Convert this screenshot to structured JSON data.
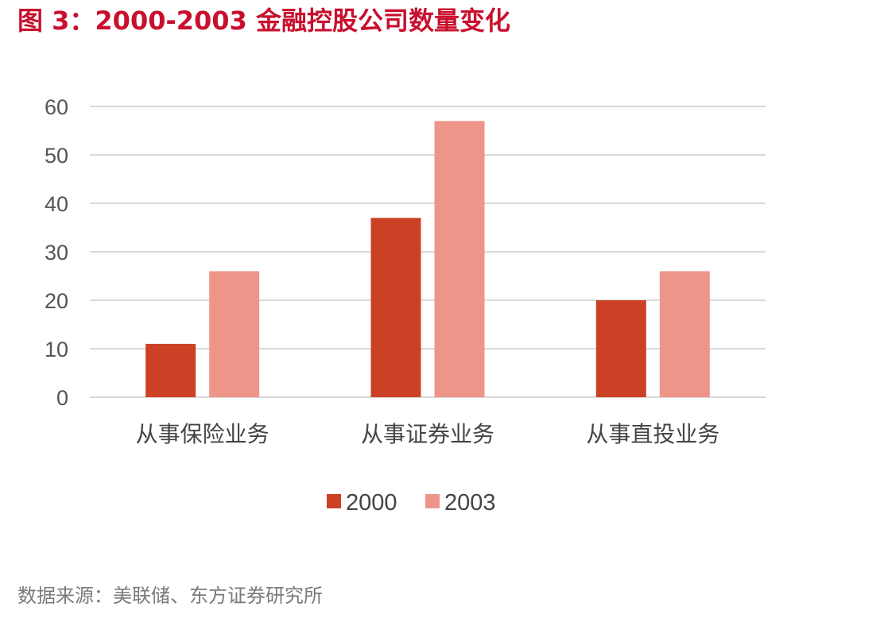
{
  "figure": {
    "title": "图 3：2000-2003 金融控股公司数量变化",
    "source": "数据来源：美联储、东方证券研究所"
  },
  "colors": {
    "title": "#C8102E",
    "series_2000": "#CC4125",
    "series_2003": "#EE958A",
    "grid": "#D9D9D9",
    "source_text": "#7A7A7A"
  },
  "chart_data": {
    "type": "bar",
    "title": "",
    "xlabel": "",
    "ylabel": "",
    "categories": [
      "从事保险业务",
      "从事证券业务",
      "从事直投业务"
    ],
    "series": [
      {
        "name": "2000",
        "values": [
          11,
          37,
          20
        ]
      },
      {
        "name": "2003",
        "values": [
          26,
          57,
          26
        ]
      }
    ],
    "ylim": [
      0,
      60
    ],
    "yticks": [
      "0",
      "10",
      "20",
      "30",
      "40",
      "50",
      "60"
    ],
    "grid": true,
    "legend_position": "bottom-center"
  }
}
